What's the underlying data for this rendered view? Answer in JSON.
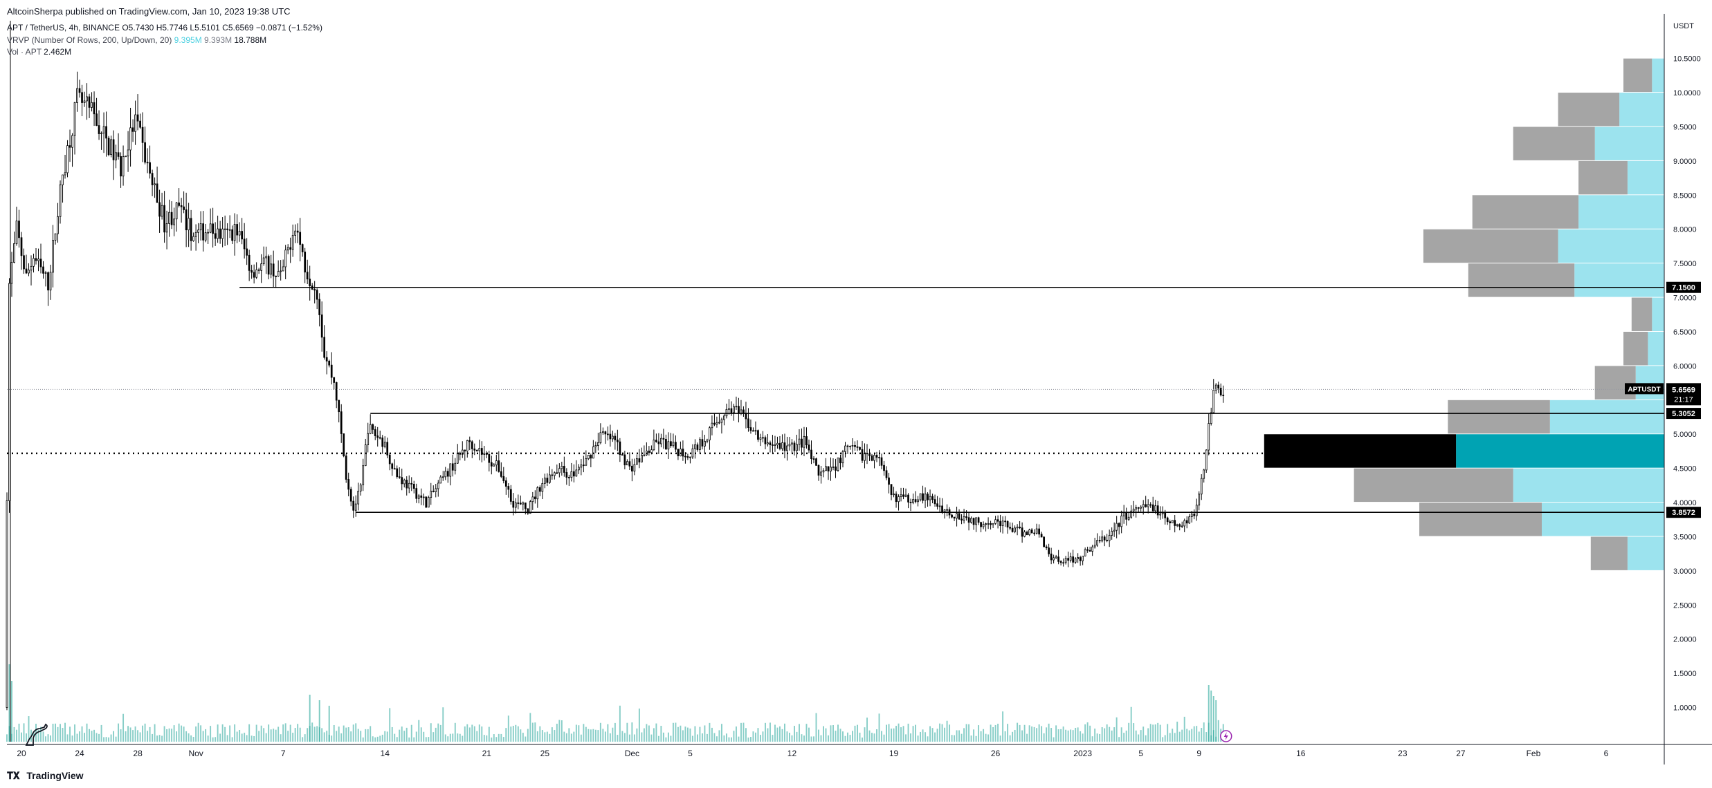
{
  "header": {
    "published": "AltcoinSherpa published on TradingView.com, Jan 10, 2023 19:38 UTC",
    "symbol_line": {
      "symbol": "APT / TetherUS, 4h, BINANCE",
      "open": "O5.7430",
      "high": "H5.7746",
      "low": "L5.5101",
      "close": "C5.6569",
      "change": "−0.0871 (−1.52%)"
    },
    "vrvp_line": {
      "label": "VRVP (Number Of Rows, 200, Up/Down, 20)",
      "up": "9.395M",
      "down": "9.393M",
      "total": "18.788M"
    },
    "vol_line": {
      "label": "Vol · APT",
      "value": "2.462M"
    }
  },
  "footer": {
    "brand": "TradingView"
  },
  "price_axis": {
    "unit": "USDT"
  },
  "colors": {
    "candle": "#000000",
    "volume": "#26a69a",
    "vp_up": "#9ce3ee",
    "vp_down": "#a5a5a5",
    "vp_poc_up": "#00a3b3",
    "vp_poc_down": "#000000",
    "level_line": "#000000"
  },
  "chart_data": {
    "type": "candlestick",
    "symbol": "APTUSDT",
    "timeframe": "4h",
    "y_axis": {
      "ylim": [
        0.5,
        10.8
      ],
      "ticks": [
        "1.0000",
        "1.5000",
        "2.0000",
        "2.5000",
        "3.0000",
        "3.5000",
        "4.0000",
        "4.5000",
        "5.0000",
        "5.5000",
        "6.0000",
        "6.5000",
        "7.0000",
        "7.5000",
        "8.0000",
        "8.5000",
        "9.0000",
        "9.5000",
        "10.0000",
        "10.5000"
      ]
    },
    "x_axis": {
      "start": "2022-10-19T00:00:00",
      "end": "2023-02-10T00:00:00",
      "ticks": [
        {
          "label": "20",
          "date": "2022-10-20"
        },
        {
          "label": "24",
          "date": "2022-10-24"
        },
        {
          "label": "28",
          "date": "2022-10-28"
        },
        {
          "label": "Nov",
          "date": "2022-11-01"
        },
        {
          "label": "7",
          "date": "2022-11-07"
        },
        {
          "label": "14",
          "date": "2022-11-14"
        },
        {
          "label": "21",
          "date": "2022-11-21"
        },
        {
          "label": "25",
          "date": "2022-11-25"
        },
        {
          "label": "Dec",
          "date": "2022-12-01"
        },
        {
          "label": "5",
          "date": "2022-12-05"
        },
        {
          "label": "12",
          "date": "2022-12-12"
        },
        {
          "label": "19",
          "date": "2022-12-19"
        },
        {
          "label": "26",
          "date": "2022-12-26"
        },
        {
          "label": "2023",
          "date": "2023-01-01"
        },
        {
          "label": "5",
          "date": "2023-01-05"
        },
        {
          "label": "9",
          "date": "2023-01-09"
        },
        {
          "label": "16",
          "date": "2023-01-16"
        },
        {
          "label": "23",
          "date": "2023-01-23"
        },
        {
          "label": "27",
          "date": "2023-01-27"
        },
        {
          "label": "Feb",
          "date": "2023-02-01"
        },
        {
          "label": "6",
          "date": "2023-02-06"
        }
      ]
    },
    "price_path": [
      {
        "t": "2022-10-19T00:00",
        "p": 1.0
      },
      {
        "t": "2022-10-19T08:00",
        "p": 7.2
      },
      {
        "t": "2022-10-19T20:00",
        "p": 8.0
      },
      {
        "t": "2022-10-20T12:00",
        "p": 7.3
      },
      {
        "t": "2022-10-21T00:00",
        "p": 7.6
      },
      {
        "t": "2022-10-22T00:00",
        "p": 7.2
      },
      {
        "t": "2022-10-23T00:00",
        "p": 8.8
      },
      {
        "t": "2022-10-24T00:00",
        "p": 9.9
      },
      {
        "t": "2022-10-25T00:00",
        "p": 9.7
      },
      {
        "t": "2022-10-26T00:00",
        "p": 9.3
      },
      {
        "t": "2022-10-27T00:00",
        "p": 8.9
      },
      {
        "t": "2022-10-28T00:00",
        "p": 9.6
      },
      {
        "t": "2022-10-29T00:00",
        "p": 8.8
      },
      {
        "t": "2022-10-30T00:00",
        "p": 8.1
      },
      {
        "t": "2022-10-31T00:00",
        "p": 8.3
      },
      {
        "t": "2022-11-01T00:00",
        "p": 7.9
      },
      {
        "t": "2022-11-02T00:00",
        "p": 8.0
      },
      {
        "t": "2022-11-03T00:00",
        "p": 7.9
      },
      {
        "t": "2022-11-04T00:00",
        "p": 8.0
      },
      {
        "t": "2022-11-05T00:00",
        "p": 7.4
      },
      {
        "t": "2022-11-06T00:00",
        "p": 7.5
      },
      {
        "t": "2022-11-07T00:00",
        "p": 7.3
      },
      {
        "t": "2022-11-08T00:00",
        "p": 8.1
      },
      {
        "t": "2022-11-08T18:00",
        "p": 7.4
      },
      {
        "t": "2022-11-09T12:00",
        "p": 7.1
      },
      {
        "t": "2022-11-10T00:00",
        "p": 6.2
      },
      {
        "t": "2022-11-10T18:00",
        "p": 5.7
      },
      {
        "t": "2022-11-11T12:00",
        "p": 4.4
      },
      {
        "t": "2022-11-12T00:00",
        "p": 3.9
      },
      {
        "t": "2022-11-12T12:00",
        "p": 4.2
      },
      {
        "t": "2022-11-13T00:00",
        "p": 5.1
      },
      {
        "t": "2022-11-14T00:00",
        "p": 4.9
      },
      {
        "t": "2022-11-15T00:00",
        "p": 4.4
      },
      {
        "t": "2022-11-16T00:00",
        "p": 4.2
      },
      {
        "t": "2022-11-17T00:00",
        "p": 4.0
      },
      {
        "t": "2022-11-18T00:00",
        "p": 4.3
      },
      {
        "t": "2022-11-19T00:00",
        "p": 4.6
      },
      {
        "t": "2022-11-20T00:00",
        "p": 4.9
      },
      {
        "t": "2022-11-21T00:00",
        "p": 4.7
      },
      {
        "t": "2022-11-22T00:00",
        "p": 4.5
      },
      {
        "t": "2022-11-23T00:00",
        "p": 4.0
      },
      {
        "t": "2022-11-24T00:00",
        "p": 3.9
      },
      {
        "t": "2022-11-25T00:00",
        "p": 4.3
      },
      {
        "t": "2022-11-26T00:00",
        "p": 4.5
      },
      {
        "t": "2022-11-27T00:00",
        "p": 4.4
      },
      {
        "t": "2022-11-28T00:00",
        "p": 4.6
      },
      {
        "t": "2022-11-29T00:00",
        "p": 5.0
      },
      {
        "t": "2022-11-30T00:00",
        "p": 4.9
      },
      {
        "t": "2022-12-01T00:00",
        "p": 4.5
      },
      {
        "t": "2022-12-02T00:00",
        "p": 4.7
      },
      {
        "t": "2022-12-03T00:00",
        "p": 4.9
      },
      {
        "t": "2022-12-04T00:00",
        "p": 4.8
      },
      {
        "t": "2022-12-05T00:00",
        "p": 4.7
      },
      {
        "t": "2022-12-06T00:00",
        "p": 4.9
      },
      {
        "t": "2022-12-07T00:00",
        "p": 5.2
      },
      {
        "t": "2022-12-08T00:00",
        "p": 5.4
      },
      {
        "t": "2022-12-09T00:00",
        "p": 5.2
      },
      {
        "t": "2022-12-10T00:00",
        "p": 4.9
      },
      {
        "t": "2022-12-11T00:00",
        "p": 4.85
      },
      {
        "t": "2022-12-12T00:00",
        "p": 4.8
      },
      {
        "t": "2022-12-13T00:00",
        "p": 4.9
      },
      {
        "t": "2022-12-14T00:00",
        "p": 4.4
      },
      {
        "t": "2022-12-15T00:00",
        "p": 4.5
      },
      {
        "t": "2022-12-16T00:00",
        "p": 4.8
      },
      {
        "t": "2022-12-17T00:00",
        "p": 4.7
      },
      {
        "t": "2022-12-18T00:00",
        "p": 4.7
      },
      {
        "t": "2022-12-19T00:00",
        "p": 4.1
      },
      {
        "t": "2022-12-20T00:00",
        "p": 4.05
      },
      {
        "t": "2022-12-21T00:00",
        "p": 4.1
      },
      {
        "t": "2022-12-22T00:00",
        "p": 4.0
      },
      {
        "t": "2022-12-23T00:00",
        "p": 3.85
      },
      {
        "t": "2022-12-24T00:00",
        "p": 3.8
      },
      {
        "t": "2022-12-25T00:00",
        "p": 3.7
      },
      {
        "t": "2022-12-26T00:00",
        "p": 3.75
      },
      {
        "t": "2022-12-27T00:00",
        "p": 3.65
      },
      {
        "t": "2022-12-28T00:00",
        "p": 3.55
      },
      {
        "t": "2022-12-29T00:00",
        "p": 3.6
      },
      {
        "t": "2022-12-30T00:00",
        "p": 3.2
      },
      {
        "t": "2022-12-31T00:00",
        "p": 3.15
      },
      {
        "t": "2023-01-01T00:00",
        "p": 3.2
      },
      {
        "t": "2023-01-02T00:00",
        "p": 3.4
      },
      {
        "t": "2023-01-03T00:00",
        "p": 3.5
      },
      {
        "t": "2023-01-04T00:00",
        "p": 3.8
      },
      {
        "t": "2023-01-05T00:00",
        "p": 3.9
      },
      {
        "t": "2023-01-06T00:00",
        "p": 3.95
      },
      {
        "t": "2023-01-07T00:00",
        "p": 3.7
      },
      {
        "t": "2023-01-08T00:00",
        "p": 3.65
      },
      {
        "t": "2023-01-08T12:00",
        "p": 3.8
      },
      {
        "t": "2023-01-09T00:00",
        "p": 3.9
      },
      {
        "t": "2023-01-09T12:00",
        "p": 4.5
      },
      {
        "t": "2023-01-09T20:00",
        "p": 5.2
      },
      {
        "t": "2023-01-10T04:00",
        "p": 5.6
      },
      {
        "t": "2023-01-10T12:00",
        "p": 5.7
      },
      {
        "t": "2023-01-10T16:00",
        "p": 5.66
      }
    ],
    "volume_spikes": [
      {
        "t": "2022-10-19T04:00",
        "v": 5.6
      },
      {
        "t": "2022-10-19T08:00",
        "v": 4.4
      },
      {
        "t": "2022-11-08T20:00",
        "v": 3.4
      },
      {
        "t": "2022-11-09T12:00",
        "v": 3.0
      },
      {
        "t": "2022-11-10T04:00",
        "v": 2.6
      },
      {
        "t": "2023-01-09T16:00",
        "v": 4.1
      },
      {
        "t": "2023-01-09T20:00",
        "v": 3.7
      },
      {
        "t": "2023-01-10T00:00",
        "v": 3.3
      },
      {
        "t": "2023-01-10T04:00",
        "v": 3.0
      }
    ],
    "horizontal_levels": [
      {
        "price": 7.15,
        "from": "2022-11-04T00:00",
        "style": "solid"
      },
      {
        "price": 5.3052,
        "from": "2022-11-13T00:00",
        "style": "solid"
      },
      {
        "price": 3.8572,
        "from": "2022-11-12T00:00",
        "style": "solid"
      },
      {
        "price": 4.72,
        "from": "2022-10-19T00:00",
        "to": "2023-01-21T00:00",
        "style": "dotted"
      }
    ],
    "price_labels": [
      {
        "text": "7.1500",
        "price": 7.15
      },
      {
        "text": "5.3052",
        "price": 5.3052
      },
      {
        "text": "3.8572",
        "price": 3.8572
      }
    ],
    "last_price": {
      "symbol": "APTUSDT",
      "price": 5.6569,
      "text": "5.6569",
      "countdown": "21:17"
    },
    "volume_profile": {
      "rows": [
        {
          "lo": 10.0,
          "hi": 10.5,
          "up": 0.15,
          "down": 0.35
        },
        {
          "lo": 9.5,
          "hi": 10.0,
          "up": 0.55,
          "down": 0.75
        },
        {
          "lo": 9.0,
          "hi": 9.5,
          "up": 0.85,
          "down": 1.0
        },
        {
          "lo": 8.5,
          "hi": 9.0,
          "up": 0.45,
          "down": 0.6
        },
        {
          "lo": 8.0,
          "hi": 8.5,
          "up": 1.05,
          "down": 1.3
        },
        {
          "lo": 7.5,
          "hi": 8.0,
          "up": 1.3,
          "down": 1.65
        },
        {
          "lo": 7.0,
          "hi": 7.5,
          "up": 1.1,
          "down": 1.3
        },
        {
          "lo": 6.5,
          "hi": 7.0,
          "up": 0.15,
          "down": 0.25
        },
        {
          "lo": 6.0,
          "hi": 6.5,
          "up": 0.2,
          "down": 0.3
        },
        {
          "lo": 5.5,
          "hi": 6.0,
          "up": 0.35,
          "down": 0.5
        },
        {
          "lo": 5.0,
          "hi": 5.5,
          "up": 1.4,
          "down": 1.25
        },
        {
          "lo": 4.5,
          "hi": 5.0,
          "up": 2.55,
          "down": 2.35,
          "poc": true
        },
        {
          "lo": 4.0,
          "hi": 4.5,
          "up": 1.85,
          "down": 1.95
        },
        {
          "lo": 3.5,
          "hi": 4.0,
          "up": 1.5,
          "down": 1.5
        },
        {
          "lo": 3.0,
          "hi": 3.5,
          "up": 0.45,
          "down": 0.45
        }
      ]
    }
  }
}
